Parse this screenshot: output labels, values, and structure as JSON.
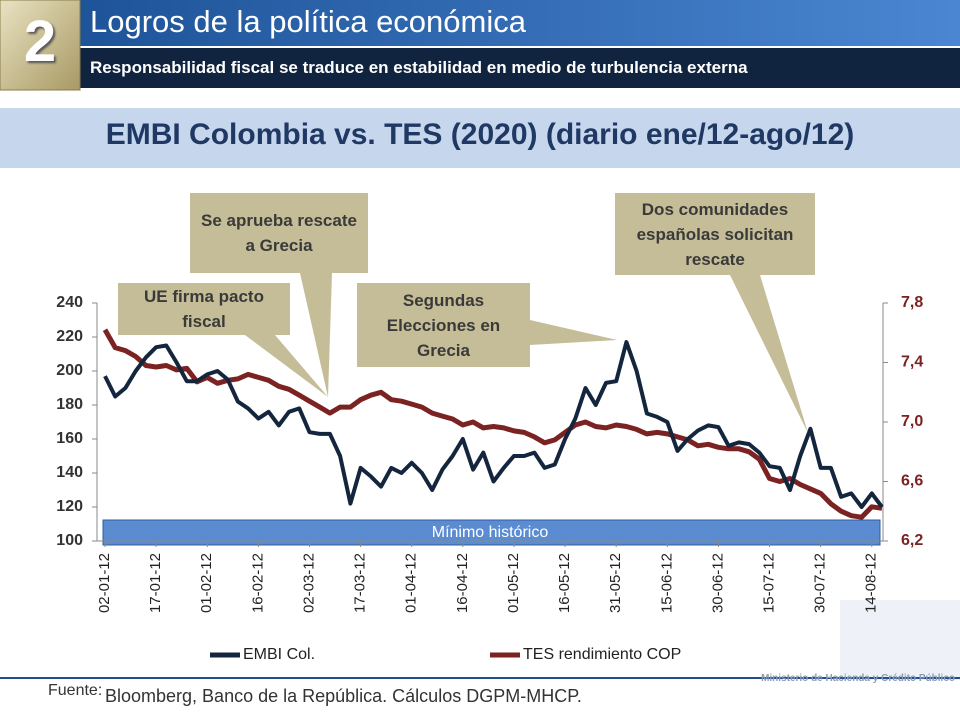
{
  "header": {
    "number": "2",
    "title": "Logros de la política económica",
    "subtitle": "Responsabilidad fiscal se traduce en estabilidad en medio de turbulencia externa"
  },
  "chart_data": {
    "type": "line",
    "title": "EMBI Colombia vs. TES (2020) (diario  ene/12-ago/12)",
    "categories": [
      "02-01-12",
      null,
      null,
      null,
      null,
      "17-01-12",
      null,
      null,
      null,
      null,
      "01-02-12",
      null,
      null,
      null,
      null,
      "16-02-12",
      null,
      null,
      null,
      null,
      "02-03-12",
      null,
      null,
      null,
      null,
      "17-03-12",
      null,
      null,
      null,
      null,
      "01-04-12",
      null,
      null,
      null,
      null,
      "16-04-12",
      null,
      null,
      null,
      null,
      "01-05-12",
      null,
      null,
      null,
      null,
      "16-05-12",
      null,
      null,
      null,
      null,
      "31-05-12",
      null,
      null,
      null,
      null,
      "15-06-12",
      null,
      null,
      null,
      null,
      "30-06-12",
      null,
      null,
      null,
      null,
      "15-07-12",
      null,
      null,
      null,
      null,
      "30-07-12",
      null,
      null,
      null,
      null,
      "14-08-12",
      null
    ],
    "series": [
      {
        "name": "EMBI Col.",
        "color": "#14263e",
        "axis": "y",
        "values": [
          197,
          185,
          190,
          200,
          208,
          214,
          215,
          205,
          194,
          194,
          198,
          200,
          195,
          182,
          178,
          172,
          176,
          168,
          176,
          178,
          164,
          163,
          163,
          150,
          122,
          143,
          138,
          132,
          143,
          140,
          146,
          140,
          130,
          142,
          150,
          160,
          142,
          152,
          135,
          143,
          150,
          150,
          152,
          143,
          145,
          160,
          172,
          190,
          180,
          193,
          194,
          217,
          200,
          175,
          173,
          170,
          153,
          160,
          165,
          168,
          167,
          156,
          158,
          157,
          152,
          144,
          143,
          130,
          150,
          166,
          143,
          143,
          126,
          128,
          120,
          128,
          120
        ]
      },
      {
        "name": "TES rendimiento COP",
        "color": "#7b2222",
        "axis": "y2",
        "values": [
          7.62,
          7.5,
          7.48,
          7.44,
          7.38,
          7.37,
          7.38,
          7.35,
          7.36,
          7.27,
          7.3,
          7.26,
          7.28,
          7.29,
          7.32,
          7.3,
          7.28,
          7.24,
          7.22,
          7.18,
          7.14,
          7.1,
          7.06,
          7.1,
          7.1,
          7.15,
          7.18,
          7.2,
          7.15,
          7.14,
          7.12,
          7.1,
          7.06,
          7.04,
          7.02,
          6.98,
          7.0,
          6.96,
          6.97,
          6.96,
          6.94,
          6.93,
          6.9,
          6.86,
          6.88,
          6.93,
          6.98,
          7.0,
          6.97,
          6.96,
          6.98,
          6.97,
          6.95,
          6.92,
          6.93,
          6.92,
          6.9,
          6.88,
          6.84,
          6.85,
          6.83,
          6.82,
          6.82,
          6.8,
          6.75,
          6.62,
          6.6,
          6.62,
          6.58,
          6.55,
          6.52,
          6.45,
          6.4,
          6.37,
          6.36,
          6.43,
          6.42
        ]
      }
    ],
    "ylim": [
      100,
      240
    ],
    "yticks": [
      100,
      120,
      140,
      160,
      180,
      200,
      220,
      240
    ],
    "y2lim": [
      6.2,
      7.8
    ],
    "y2ticks": [
      {
        "value": 6.2,
        "label": "6,2"
      },
      {
        "value": 6.6,
        "label": "6,6"
      },
      {
        "value": 7.0,
        "label": "7,0"
      },
      {
        "value": 7.4,
        "label": "7,4"
      },
      {
        "value": 7.8,
        "label": "7,8"
      }
    ],
    "grid": false,
    "legend": "bottom",
    "band_label": "Mínimo histórico",
    "annotations": [
      "UE firma pacto fiscal",
      "Se aprueba rescate a Grecia",
      "Segundas Elecciones en Grecia",
      "Dos comunidades españolas solicitan rescate"
    ]
  },
  "footer": {
    "source_label": "Fuente:",
    "source": "Bloomberg, Banco de la República. Cálculos DGPM-MHCP.",
    "ministry": "Ministerio de Hacienda y Crédito Público"
  }
}
